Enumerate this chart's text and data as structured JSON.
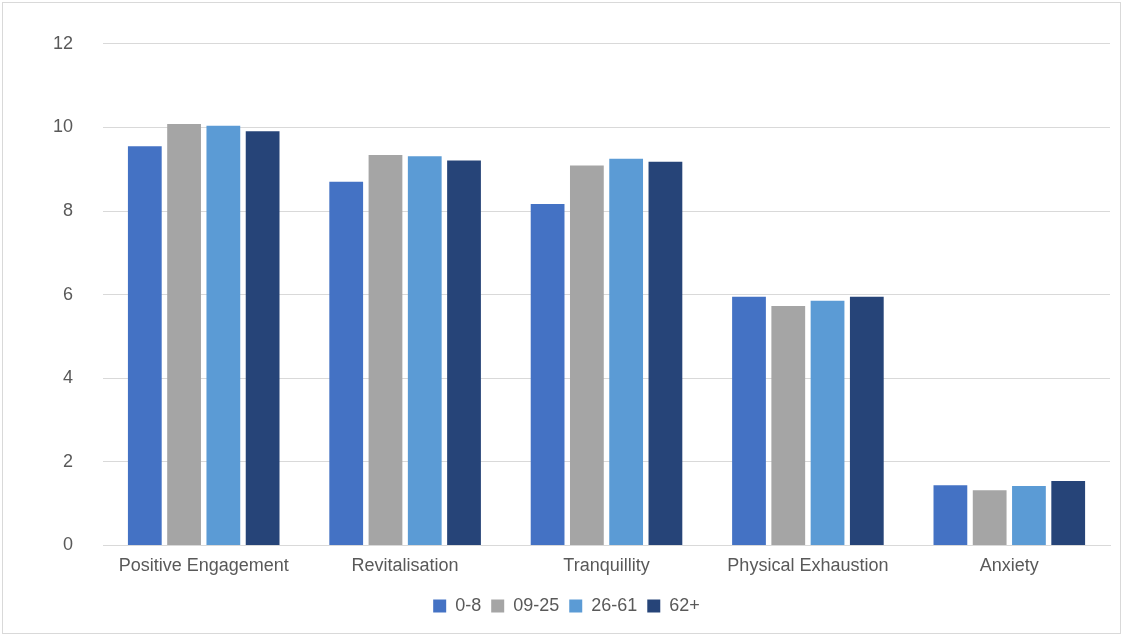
{
  "chart_data": {
    "type": "bar",
    "categories": [
      "Positive Engagement",
      "Revitalisation",
      "Tranquillity",
      "Physical Exhaustion",
      "Anxiety"
    ],
    "series": [
      {
        "name": "0-8",
        "color": "#4472c4",
        "values": [
          9.55,
          8.7,
          8.17,
          5.95,
          1.44
        ]
      },
      {
        "name": "09-25",
        "color": "#a5a5a5",
        "values": [
          10.08,
          9.34,
          9.09,
          5.73,
          1.32
        ]
      },
      {
        "name": "26-61",
        "color": "#5b9bd5",
        "values": [
          10.04,
          9.31,
          9.25,
          5.85,
          1.42
        ]
      },
      {
        "name": "62+",
        "color": "#264478",
        "values": [
          9.91,
          9.21,
          9.18,
          5.95,
          1.54
        ]
      }
    ],
    "ylim": [
      0,
      12
    ],
    "yticks": [
      0,
      2,
      4,
      6,
      8,
      10,
      12
    ],
    "grid": "y",
    "legend": "bottom"
  }
}
